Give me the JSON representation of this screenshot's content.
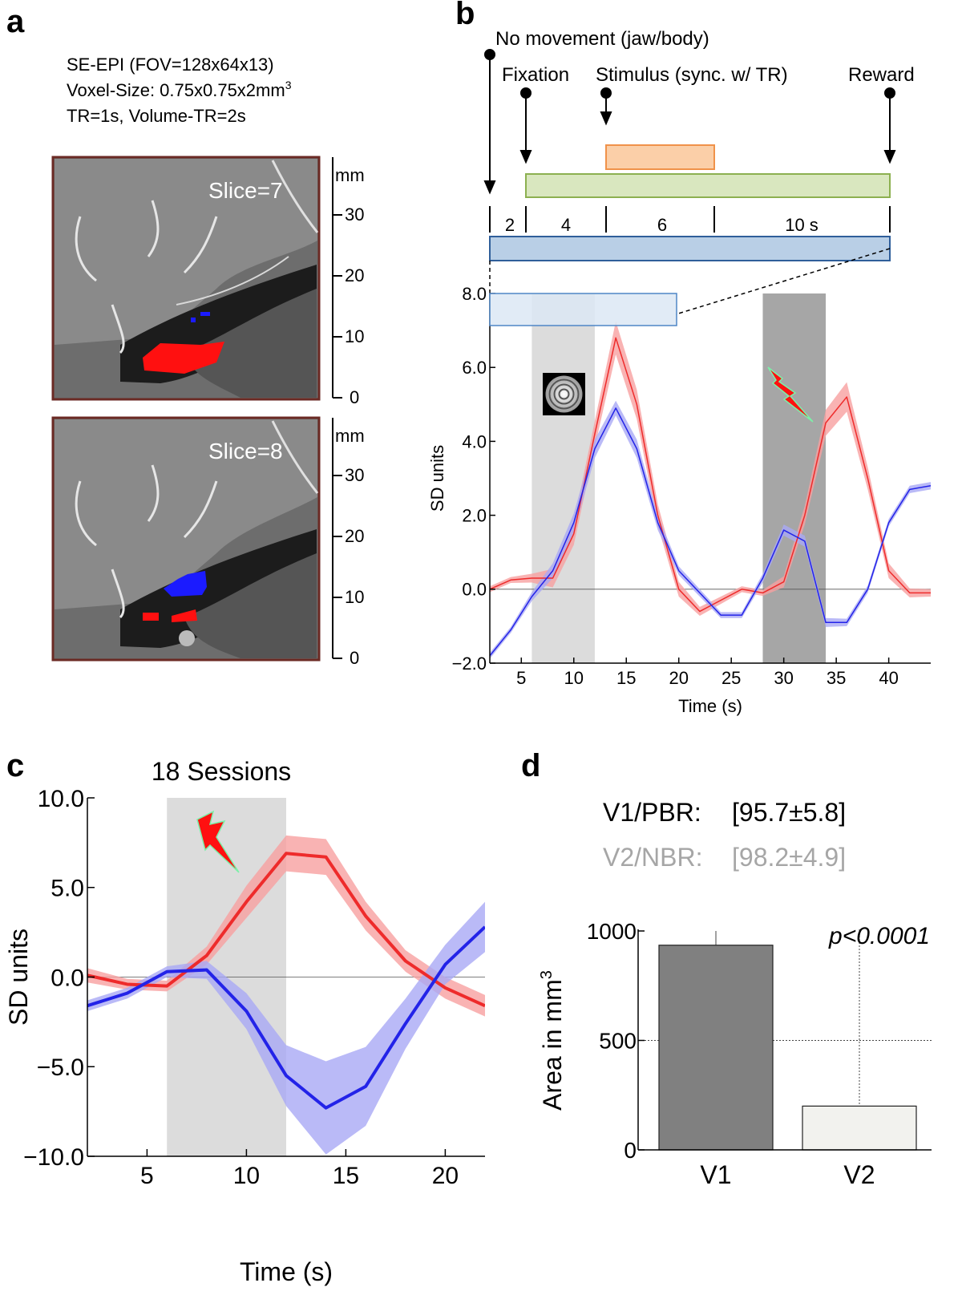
{
  "panels": {
    "a": {
      "letter": "a",
      "acq_lines": [
        "SE-EPI (FOV=128x64x13)",
        "Voxel-Size: 0.75x0.75x2mm",
        "TR=1s, Volume-TR=2s"
      ],
      "acq_sup": "3",
      "slices": [
        {
          "label": "Slice=7",
          "unit": "mm",
          "scale_ticks": [
            "30",
            "20",
            "10",
            "0"
          ]
        },
        {
          "label": "Slice=8",
          "unit": "mm",
          "scale_ticks": [
            "30",
            "20",
            "10",
            "0"
          ]
        }
      ]
    },
    "b": {
      "letter": "b",
      "events": {
        "no_movement": "No movement (jaw/body)",
        "fixation": "Fixation",
        "stimulus": "Stimulus (sync. w/ TR)",
        "reward": "Reward"
      },
      "durations": [
        "2",
        "4",
        "6",
        "10 s"
      ],
      "colors": {
        "fixation_bar": "#d9e7bf",
        "stimulus_bar": "#fbcfa8",
        "trial_bar": "#b9cfe6",
        "red": "#ee2b2b",
        "blue": "#2323e8"
      }
    },
    "c": {
      "letter": "c",
      "title": "18 Sessions"
    },
    "d": {
      "letter": "d",
      "v1_label": "V1/PBR:",
      "v1_value": "[95.7±5.8]",
      "v2_label": "V2/NBR:",
      "v2_value": "[98.2±4.9]",
      "p_value": "p<0.0001"
    }
  },
  "chart_data": [
    {
      "id": "b",
      "type": "line",
      "xlabel": "Time (s)",
      "ylabel": "SD units",
      "xlim": [
        2,
        44
      ],
      "ylim": [
        -2,
        8
      ],
      "xticks": [
        5,
        10,
        15,
        20,
        25,
        30,
        35,
        40
      ],
      "yticks": [
        {
          "v": -2,
          "label": "−2.0"
        },
        {
          "v": 0,
          "label": "0.0"
        },
        {
          "v": 2,
          "label": "2.0"
        },
        {
          "v": 4,
          "label": "4.0"
        },
        {
          "v": 6,
          "label": "6.0"
        },
        {
          "v": 8,
          "label": "8.0"
        }
      ],
      "shaded": [
        {
          "from": 6,
          "to": 12,
          "color": "#dcdcdc"
        },
        {
          "from": 28,
          "to": 34,
          "color": "#a6a6a6"
        }
      ],
      "x": [
        2,
        4,
        6,
        8,
        10,
        12,
        14,
        16,
        18,
        20,
        22,
        24,
        26,
        28,
        30,
        32,
        34,
        36,
        38,
        40,
        42,
        44
      ],
      "series": [
        {
          "color": "#ee2b2b",
          "band": "#f7a0a0",
          "values": [
            0.0,
            0.25,
            0.3,
            0.3,
            1.5,
            4.2,
            6.8,
            5.0,
            2.0,
            0.0,
            -0.6,
            -0.3,
            0.0,
            -0.1,
            0.2,
            2.0,
            4.5,
            5.2,
            3.0,
            0.5,
            -0.1,
            -0.1
          ],
          "err": [
            0.08,
            0.08,
            0.12,
            0.25,
            0.3,
            0.35,
            0.45,
            0.4,
            0.3,
            0.2,
            0.12,
            0.1,
            0.08,
            0.08,
            0.15,
            0.25,
            0.35,
            0.4,
            0.3,
            0.2,
            0.12,
            0.1
          ]
        },
        {
          "color": "#2323e8",
          "band": "#a9a9f5",
          "values": [
            -1.8,
            -1.1,
            -0.2,
            0.5,
            1.8,
            3.8,
            4.9,
            3.8,
            1.8,
            0.5,
            -0.1,
            -0.7,
            -0.7,
            0.3,
            1.6,
            1.3,
            -0.9,
            -0.9,
            0.0,
            1.8,
            2.7,
            2.8
          ],
          "err": [
            0.08,
            0.08,
            0.12,
            0.2,
            0.25,
            0.25,
            0.2,
            0.25,
            0.2,
            0.12,
            0.1,
            0.08,
            0.08,
            0.12,
            0.15,
            0.15,
            0.12,
            0.1,
            0.1,
            0.1,
            0.1,
            0.1
          ]
        }
      ]
    },
    {
      "id": "c",
      "type": "line",
      "title": "18 Sessions",
      "xlabel": "Time (s)",
      "ylabel": "SD units",
      "xlim": [
        2,
        22
      ],
      "ylim": [
        -10,
        10
      ],
      "xticks": [
        5,
        10,
        15,
        20
      ],
      "yticks": [
        {
          "v": -10,
          "label": "−10.0"
        },
        {
          "v": -5,
          "label": "−5.0"
        },
        {
          "v": 0,
          "label": "0.0"
        },
        {
          "v": 5,
          "label": "5.0"
        },
        {
          "v": 10,
          "label": "10.0"
        }
      ],
      "shaded": [
        {
          "from": 6,
          "to": 12,
          "color": "#dcdcdc"
        }
      ],
      "x": [
        2,
        4,
        6,
        8,
        10,
        12,
        14,
        16,
        18,
        20,
        22
      ],
      "series": [
        {
          "color": "#ee2b2b",
          "band": "#f7a0a0",
          "values": [
            0.1,
            -0.4,
            -0.5,
            1.2,
            4.2,
            6.9,
            6.7,
            3.4,
            0.9,
            -0.6,
            -1.6
          ],
          "err": [
            0.4,
            0.3,
            0.3,
            0.5,
            0.9,
            1.0,
            1.0,
            0.8,
            0.6,
            0.6,
            0.6
          ]
        },
        {
          "color": "#2323e8",
          "band": "#a9a9f5",
          "values": [
            -1.6,
            -0.9,
            0.3,
            0.4,
            -1.9,
            -5.5,
            -7.3,
            -6.1,
            -2.6,
            0.7,
            2.8
          ],
          "err": [
            0.3,
            0.3,
            0.3,
            0.5,
            1.0,
            1.7,
            2.6,
            2.2,
            1.4,
            1.1,
            1.4
          ]
        }
      ]
    },
    {
      "id": "d",
      "type": "bar",
      "ylabel": "Area in mm",
      "ylabel_sup": "3",
      "categories": [
        "V1",
        "V2"
      ],
      "values": [
        935,
        200
      ],
      "errors": [
        65,
        980
      ],
      "colors": [
        "#808080",
        "#f2f2ee"
      ],
      "ylim": [
        0,
        1000
      ],
      "yticks": [
        0,
        500,
        1000
      ],
      "grid_y": 500
    }
  ]
}
